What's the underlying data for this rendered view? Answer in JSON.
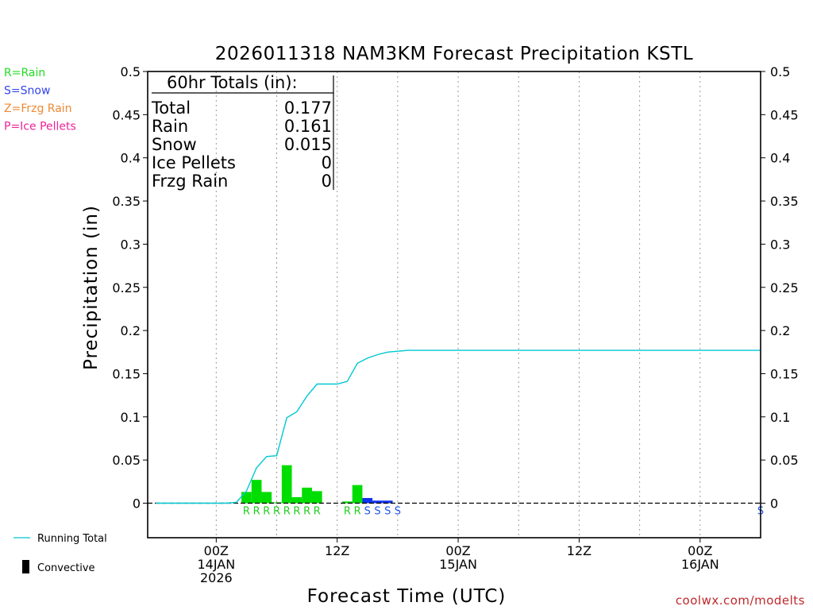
{
  "chart_data": {
    "type": "bar",
    "title": "2026011318 NAM3KM Forecast Precipitation KSTL",
    "xlabel": "Forecast Time (UTC)",
    "ylabel": "Precipitation (in)",
    "ylim": [
      -0.04,
      0.5
    ],
    "yticks": [
      0,
      0.05,
      0.1,
      0.15,
      0.2,
      0.25,
      0.3,
      0.35,
      0.4,
      0.45,
      0.5
    ],
    "ytick_labels": [
      "0",
      "0.05",
      "0.1",
      "0.15",
      "0.2",
      "0.25",
      "0.3",
      "0.35",
      "0.4",
      "0.45",
      "0.5"
    ],
    "x_unit": "forecast hour",
    "xlim": [
      -0.8,
      60
    ],
    "grid": "dotted vertical at 6-hour intervals",
    "x_ticks": [
      {
        "hour": 6,
        "lines": [
          "00Z",
          "14JAN",
          "2026"
        ]
      },
      {
        "hour": 18,
        "lines": [
          "12Z"
        ]
      },
      {
        "hour": 30,
        "lines": [
          "00Z",
          "15JAN"
        ]
      },
      {
        "hour": 42,
        "lines": [
          "12Z"
        ]
      },
      {
        "hour": 54,
        "lines": [
          "00Z",
          "16JAN"
        ]
      }
    ],
    "type_legend": [
      {
        "text": "R=Rain",
        "color": "#22dd22"
      },
      {
        "text": "S=Snow",
        "color": "#3344ee"
      },
      {
        "text": "Z=Frzg Rain",
        "color": "#ee8833"
      },
      {
        "text": "P=Ice Pellets",
        "color": "#ee2299"
      }
    ],
    "series_legend": [
      {
        "name": "Running Total",
        "kind": "line",
        "color": "#00c8d2"
      },
      {
        "name": "Convective",
        "kind": "bar",
        "color": "#000000"
      }
    ],
    "totals_box": {
      "header": "60hr Totals (in):",
      "rows": [
        {
          "label": "Total",
          "value": "0.177"
        },
        {
          "label": "Rain",
          "value": "0.161"
        },
        {
          "label": "Snow",
          "value": "0.015"
        },
        {
          "label": "Ice Pellets",
          "value": "0"
        },
        {
          "label": "Frzg Rain",
          "value": "0"
        }
      ]
    },
    "series": [
      {
        "name": "Hourly Precipitation",
        "bars": [
          {
            "hour": 9,
            "value": 0.013,
            "type": "R"
          },
          {
            "hour": 10,
            "value": 0.027,
            "type": "R"
          },
          {
            "hour": 11,
            "value": 0.013,
            "type": "R"
          },
          {
            "hour": 12,
            "value": 0.001,
            "type": "R"
          },
          {
            "hour": 13,
            "value": 0.044,
            "type": "R"
          },
          {
            "hour": 14,
            "value": 0.007,
            "type": "R"
          },
          {
            "hour": 15,
            "value": 0.018,
            "type": "R"
          },
          {
            "hour": 16,
            "value": 0.014,
            "type": "R"
          },
          {
            "hour": 19,
            "value": 0.002,
            "type": "R"
          },
          {
            "hour": 20,
            "value": 0.021,
            "type": "R"
          },
          {
            "hour": 21,
            "value": 0.006,
            "type": "S"
          },
          {
            "hour": 22,
            "value": 0.003,
            "type": "S"
          },
          {
            "hour": 23,
            "value": 0.003,
            "type": "S"
          }
        ]
      },
      {
        "name": "Running Total",
        "points": [
          [
            0,
            0
          ],
          [
            1,
            0
          ],
          [
            2,
            0
          ],
          [
            3,
            0
          ],
          [
            4,
            0
          ],
          [
            5,
            0
          ],
          [
            6,
            0
          ],
          [
            7,
            0
          ],
          [
            8,
            0.001
          ],
          [
            9,
            0.014
          ],
          [
            10,
            0.041
          ],
          [
            11,
            0.054
          ],
          [
            12,
            0.055
          ],
          [
            13,
            0.099
          ],
          [
            14,
            0.106
          ],
          [
            15,
            0.124
          ],
          [
            16,
            0.138
          ],
          [
            17,
            0.138
          ],
          [
            18,
            0.138
          ],
          [
            19,
            0.141
          ],
          [
            20,
            0.162
          ],
          [
            21,
            0.168
          ],
          [
            22,
            0.172
          ],
          [
            23,
            0.175
          ],
          [
            24,
            0.176
          ],
          [
            25,
            0.177
          ],
          [
            60,
            0.177
          ]
        ]
      }
    ],
    "type_markers": [
      {
        "hour": 9,
        "type": "R"
      },
      {
        "hour": 10,
        "type": "R"
      },
      {
        "hour": 11,
        "type": "R"
      },
      {
        "hour": 12,
        "type": "R"
      },
      {
        "hour": 13,
        "type": "R"
      },
      {
        "hour": 14,
        "type": "R"
      },
      {
        "hour": 15,
        "type": "R"
      },
      {
        "hour": 16,
        "type": "R"
      },
      {
        "hour": 19,
        "type": "R"
      },
      {
        "hour": 20,
        "type": "R"
      },
      {
        "hour": 21,
        "type": "S"
      },
      {
        "hour": 22,
        "type": "S"
      },
      {
        "hour": 23,
        "type": "S"
      },
      {
        "hour": 24,
        "type": "S"
      },
      {
        "hour": 60,
        "type": "S"
      }
    ],
    "marker_colors": {
      "R": "#22cc22",
      "S": "#2255ee"
    },
    "bar_colors": {
      "R": "#00dd00",
      "S": "#1133ee"
    }
  },
  "credit": "coolwx.com/modelts"
}
